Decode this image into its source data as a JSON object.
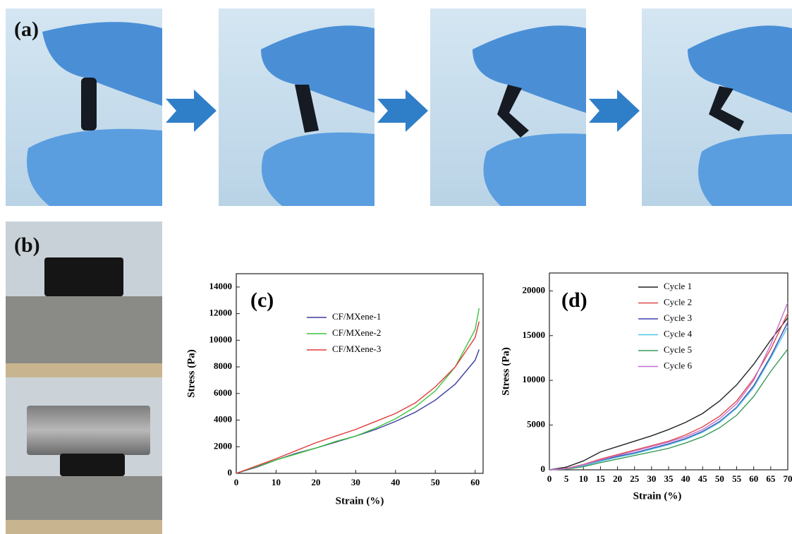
{
  "photo_panels": [
    {
      "label": "(a)"
    },
    {
      "label": "(b)"
    }
  ],
  "chart_data": [
    {
      "type": "line",
      "panel_label": "(c)",
      "x_label": "Strain (%)",
      "y_label": "Stress (Pa)",
      "x": [
        0,
        5,
        10,
        15,
        20,
        25,
        30,
        35,
        40,
        45,
        50,
        55,
        60,
        61
      ],
      "series": [
        {
          "name": "CF/MXene-1",
          "color": "#3b3b9e",
          "values": [
            0,
            450,
            1000,
            1500,
            1900,
            2350,
            2800,
            3300,
            3900,
            4600,
            5500,
            6700,
            8500,
            9300
          ]
        },
        {
          "name": "CF/MXene-2",
          "color": "#3cc43c",
          "values": [
            0,
            500,
            1000,
            1450,
            1900,
            2400,
            2800,
            3400,
            4100,
            5000,
            6200,
            8000,
            10800,
            12400
          ]
        },
        {
          "name": "CF/MXene-3",
          "color": "#e03a3a",
          "values": [
            0,
            550,
            1100,
            1700,
            2300,
            2800,
            3300,
            3900,
            4500,
            5300,
            6500,
            8000,
            10200,
            11400
          ]
        }
      ],
      "xlim": [
        0,
        62
      ],
      "xticks": [
        0,
        10,
        20,
        30,
        40,
        50,
        60
      ],
      "ylim": [
        0,
        15000
      ],
      "yticks": [
        0,
        2000,
        4000,
        6000,
        8000,
        10000,
        12000,
        14000
      ]
    },
    {
      "type": "line",
      "panel_label": "(d)",
      "x_label": "Strain (%)",
      "y_label": "Stress (Pa)",
      "x": [
        0,
        5,
        10,
        15,
        20,
        25,
        30,
        35,
        40,
        45,
        50,
        55,
        60,
        65,
        70
      ],
      "series": [
        {
          "name": "Cycle 1",
          "color": "#222222",
          "values": [
            0,
            300,
            1000,
            2000,
            2600,
            3200,
            3800,
            4500,
            5300,
            6300,
            7700,
            9500,
            11800,
            14500,
            17000
          ]
        },
        {
          "name": "Cycle 2",
          "color": "#e04848",
          "values": [
            0,
            150,
            600,
            1200,
            1700,
            2200,
            2700,
            3200,
            3900,
            4800,
            6000,
            7700,
            10200,
            13500,
            17500
          ]
        },
        {
          "name": "Cycle 3",
          "color": "#4040b0",
          "values": [
            0,
            100,
            500,
            1000,
            1500,
            1900,
            2400,
            2900,
            3500,
            4300,
            5400,
            7000,
            9400,
            12700,
            16500
          ]
        },
        {
          "name": "Cycle 4",
          "color": "#4cc8e0",
          "values": [
            0,
            100,
            450,
            950,
            1400,
            1800,
            2300,
            2800,
            3400,
            4200,
            5300,
            6900,
            9200,
            12500,
            16000
          ]
        },
        {
          "name": "Cycle 5",
          "color": "#3a9a5a",
          "values": [
            0,
            80,
            350,
            800,
            1200,
            1600,
            2000,
            2400,
            3000,
            3700,
            4700,
            6100,
            8200,
            11000,
            13500
          ]
        },
        {
          "name": "Cycle 6",
          "color": "#c070d0",
          "values": [
            0,
            120,
            550,
            1100,
            1600,
            2100,
            2600,
            3100,
            3700,
            4500,
            5700,
            7400,
            10000,
            14000,
            18700
          ]
        }
      ],
      "xlim": [
        0,
        70
      ],
      "xticks": [
        0,
        5,
        10,
        15,
        20,
        25,
        30,
        35,
        40,
        45,
        50,
        55,
        60,
        65,
        70
      ],
      "ylim": [
        0,
        22000
      ],
      "yticks": [
        0,
        5000,
        10000,
        15000,
        20000
      ]
    }
  ]
}
